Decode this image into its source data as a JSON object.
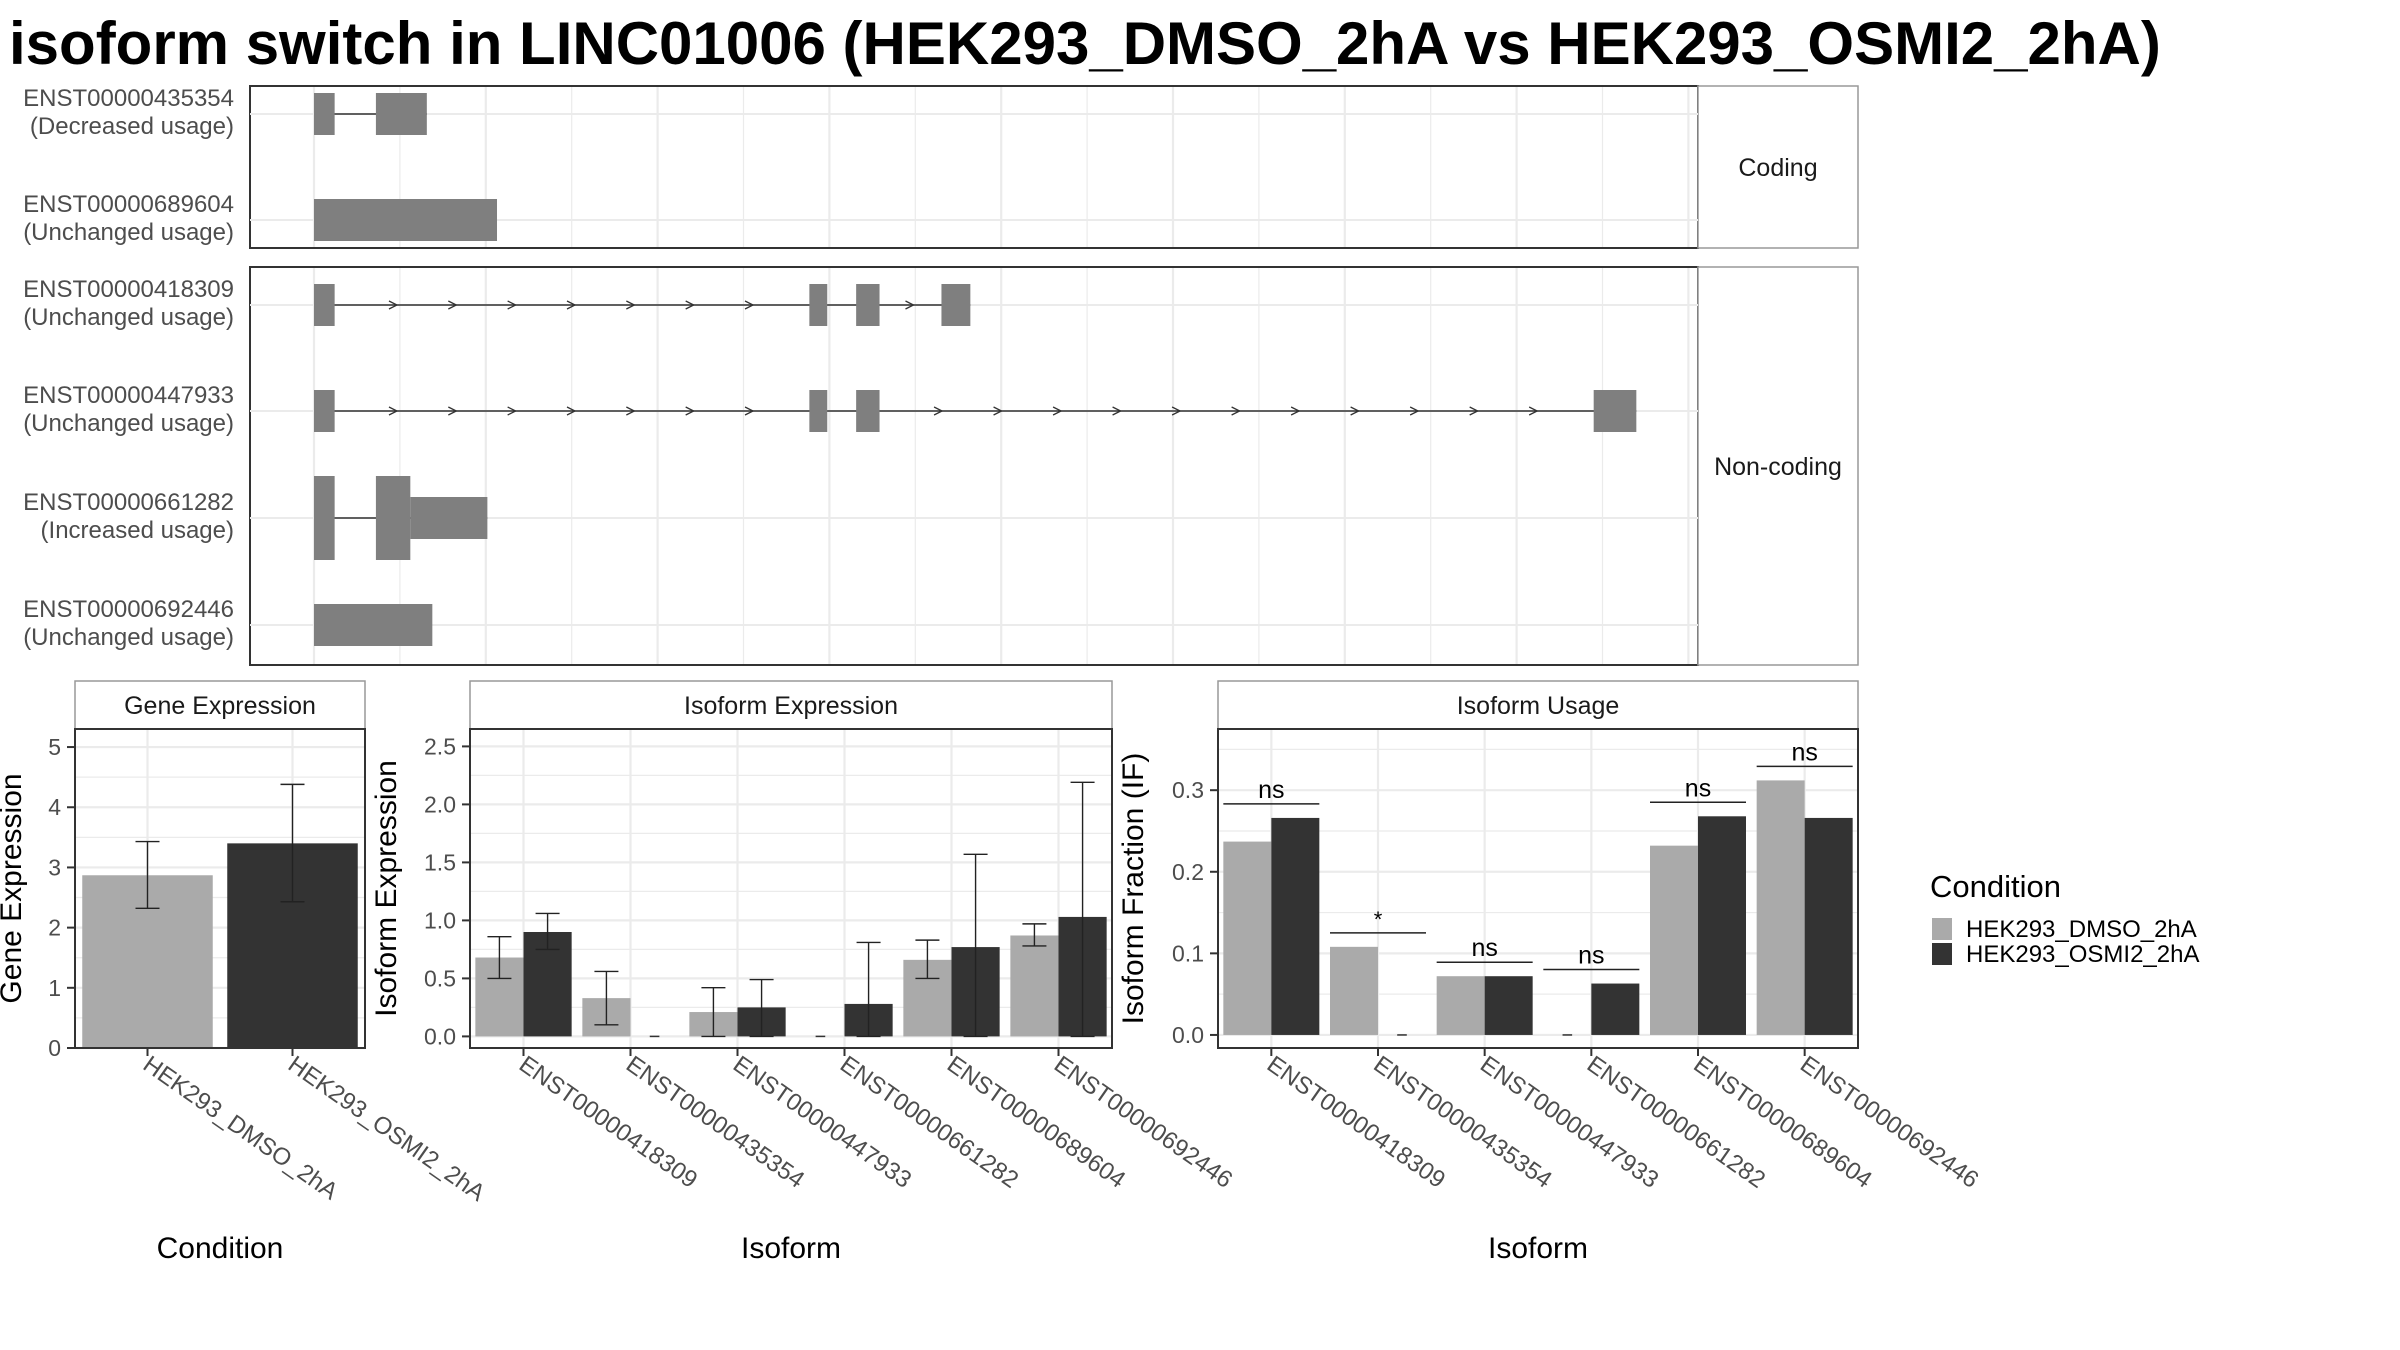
{
  "title": "isoform switch in LINC01006 (HEK293_DMSO_2hA vs HEK293_OSMI2_2hA)",
  "colors": {
    "dmso": "#aaaaaa",
    "osmi": "#333333",
    "exon": "#7f7f7f",
    "grid": "#ebebeb",
    "strip": "#ffffff"
  },
  "structure": {
    "panels": [
      "Coding",
      "Non-coding"
    ],
    "isoforms": [
      {
        "id": "ENST00000435354",
        "usage": "(Decreased usage)",
        "panel": "Coding",
        "exons": [
          [
            0,
            0.015
          ],
          [
            0.045,
            0.082
          ]
        ],
        "arrows": false
      },
      {
        "id": "ENST00000689604",
        "usage": "(Unchanged usage)",
        "panel": "Coding",
        "exons": [
          [
            0,
            0.133
          ]
        ],
        "arrows": false
      },
      {
        "id": "ENST00000418309",
        "usage": "(Unchanged usage)",
        "panel": "Non-coding",
        "exons": [
          [
            0,
            0.015
          ],
          [
            0.36,
            0.373
          ],
          [
            0.394,
            0.411
          ],
          [
            0.456,
            0.477
          ]
        ],
        "arrows": true
      },
      {
        "id": "ENST00000447933",
        "usage": "(Unchanged usage)",
        "panel": "Non-coding",
        "exons": [
          [
            0,
            0.015
          ],
          [
            0.36,
            0.373
          ],
          [
            0.394,
            0.411
          ],
          [
            0.93,
            0.961
          ]
        ],
        "arrows": true
      },
      {
        "id": "ENST00000661282",
        "usage": "(Increased usage)",
        "panel": "Non-coding",
        "exons": [
          [
            0,
            0.015
          ],
          [
            0.045,
            0.07
          ],
          [
            0.07,
            0.126
          ]
        ],
        "arrows": false
      },
      {
        "id": "ENST00000692446",
        "usage": "(Unchanged usage)",
        "panel": "Non-coding",
        "exons": [
          [
            0,
            0.086
          ]
        ],
        "arrows": false
      }
    ]
  },
  "chart_data": [
    {
      "type": "bar",
      "title": "Gene Expression",
      "xlabel": "Condition",
      "ylabel": "Gene Expression",
      "ylim": [
        0,
        5.3
      ],
      "yticks": [
        0,
        1,
        2,
        3,
        4,
        5
      ],
      "categories": [
        "HEK293_DMSO_2hA",
        "HEK293_OSMI2_2hA"
      ],
      "series": [
        {
          "name": "HEK293_DMSO_2hA",
          "values": [
            2.87,
            null
          ],
          "err_low": [
            2.32,
            null
          ],
          "err_high": [
            3.43,
            null
          ]
        },
        {
          "name": "HEK293_OSMI2_2hA",
          "values": [
            null,
            3.4
          ],
          "err_low": [
            null,
            2.43
          ],
          "err_high": [
            null,
            4.38
          ]
        }
      ]
    },
    {
      "type": "bar",
      "title": "Isoform Expression",
      "xlabel": "Isoform",
      "ylabel": "Isoform Expression",
      "ylim": [
        -0.1,
        2.65
      ],
      "yticks": [
        0.0,
        0.5,
        1.0,
        1.5,
        2.0,
        2.5
      ],
      "categories": [
        "ENST00000418309",
        "ENST00000435354",
        "ENST00000447933",
        "ENST00000661282",
        "ENST00000689604",
        "ENST00000692446"
      ],
      "series": [
        {
          "name": "HEK293_DMSO_2hA",
          "values": [
            0.68,
            0.33,
            0.21,
            0,
            0.66,
            0.87
          ],
          "err_low": [
            0.5,
            0.1,
            0.0,
            null,
            0.5,
            0.78
          ],
          "err_high": [
            0.86,
            0.56,
            0.42,
            null,
            0.83,
            0.97
          ]
        },
        {
          "name": "HEK293_OSMI2_2hA",
          "values": [
            0.9,
            0,
            0.25,
            0.28,
            0.77,
            1.03
          ],
          "err_low": [
            0.75,
            null,
            0.0,
            0.0,
            0.0,
            0.0
          ],
          "err_high": [
            1.06,
            null,
            0.49,
            0.81,
            1.57,
            2.19
          ]
        }
      ]
    },
    {
      "type": "bar",
      "title": "Isoform Usage",
      "xlabel": "Isoform",
      "ylabel": "Isoform Fraction (IF)",
      "ylim": [
        -0.016,
        0.375
      ],
      "yticks": [
        0.0,
        0.1,
        0.2,
        0.3
      ],
      "categories": [
        "ENST00000418309",
        "ENST00000435354",
        "ENST00000447933",
        "ENST00000661282",
        "ENST00000689604",
        "ENST00000692446"
      ],
      "series": [
        {
          "name": "HEK293_DMSO_2hA",
          "values": [
            0.237,
            0.108,
            0.072,
            0,
            0.232,
            0.312
          ]
        },
        {
          "name": "HEK293_OSMI2_2hA",
          "values": [
            0.266,
            0,
            0.072,
            0.063,
            0.268,
            0.266
          ]
        }
      ],
      "significance": [
        "ns",
        "*",
        "ns",
        "ns",
        "ns",
        "ns"
      ]
    }
  ],
  "legend": {
    "title": "Condition",
    "items": [
      "HEK293_DMSO_2hA",
      "HEK293_OSMI2_2hA"
    ]
  }
}
